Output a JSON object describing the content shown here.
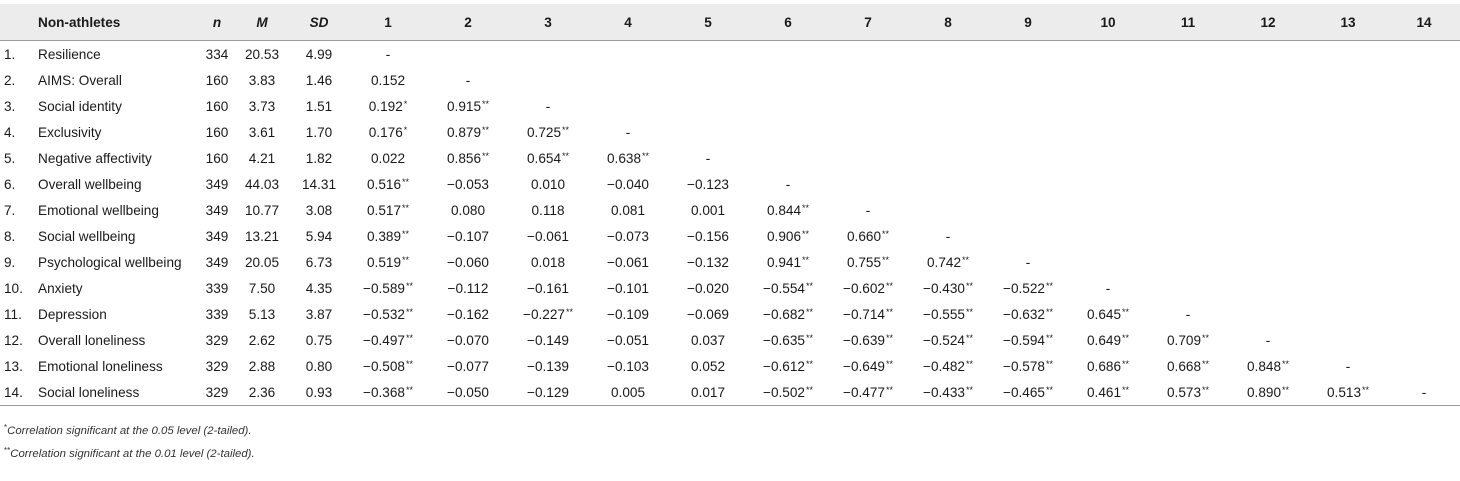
{
  "table": {
    "headers": {
      "index": "",
      "group": "Non-athletes",
      "n": "n",
      "M": "M",
      "SD": "SD",
      "cols": [
        "1",
        "2",
        "3",
        "4",
        "5",
        "6",
        "7",
        "8",
        "9",
        "10",
        "11",
        "12",
        "13",
        "14"
      ]
    },
    "rows": [
      {
        "idx": "1.",
        "var": "Resilience",
        "n": "334",
        "M": "20.53",
        "SD": "4.99",
        "cells": [
          "-",
          "",
          "",
          "",
          "",
          "",
          "",
          "",
          "",
          "",
          "",
          "",
          "",
          ""
        ]
      },
      {
        "idx": "2.",
        "var": "AIMS: Overall",
        "n": "160",
        "M": "3.83",
        "SD": "1.46",
        "cells": [
          "0.152",
          "-",
          "",
          "",
          "",
          "",
          "",
          "",
          "",
          "",
          "",
          "",
          "",
          ""
        ]
      },
      {
        "idx": "3.",
        "var": "Social identity",
        "n": "160",
        "M": "3.73",
        "SD": "1.51",
        "cells": [
          "0.192*",
          "0.915**",
          "-",
          "",
          "",
          "",
          "",
          "",
          "",
          "",
          "",
          "",
          "",
          ""
        ]
      },
      {
        "idx": "4.",
        "var": "Exclusivity",
        "n": "160",
        "M": "3.61",
        "SD": "1.70",
        "cells": [
          "0.176*",
          "0.879**",
          "0.725**",
          "-",
          "",
          "",
          "",
          "",
          "",
          "",
          "",
          "",
          "",
          ""
        ]
      },
      {
        "idx": "5.",
        "var": "Negative affectivity",
        "n": "160",
        "M": "4.21",
        "SD": "1.82",
        "cells": [
          "0.022",
          "0.856**",
          "0.654**",
          "0.638**",
          "-",
          "",
          "",
          "",
          "",
          "",
          "",
          "",
          "",
          ""
        ]
      },
      {
        "idx": "6.",
        "var": "Overall wellbeing",
        "n": "349",
        "M": "44.03",
        "SD": "14.31",
        "cells": [
          "0.516**",
          "−0.053",
          "0.010",
          "−0.040",
          "−0.123",
          "-",
          "",
          "",
          "",
          "",
          "",
          "",
          "",
          ""
        ]
      },
      {
        "idx": "7.",
        "var": "Emotional wellbeing",
        "n": "349",
        "M": "10.77",
        "SD": "3.08",
        "cells": [
          "0.517**",
          "0.080",
          "0.118",
          "0.081",
          "0.001",
          "0.844**",
          "-",
          "",
          "",
          "",
          "",
          "",
          "",
          ""
        ]
      },
      {
        "idx": "8.",
        "var": "Social wellbeing",
        "n": "349",
        "M": "13.21",
        "SD": "5.94",
        "cells": [
          "0.389**",
          "−0.107",
          "−0.061",
          "−0.073",
          "−0.156",
          "0.906**",
          "0.660**",
          "-",
          "",
          "",
          "",
          "",
          "",
          ""
        ]
      },
      {
        "idx": "9.",
        "var": "Psychological wellbeing",
        "n": "349",
        "M": "20.05",
        "SD": "6.73",
        "cells": [
          "0.519**",
          "−0.060",
          "0.018",
          "−0.061",
          "−0.132",
          "0.941**",
          "0.755**",
          "0.742**",
          "-",
          "",
          "",
          "",
          "",
          ""
        ]
      },
      {
        "idx": "10.",
        "var": "Anxiety",
        "n": "339",
        "M": "7.50",
        "SD": "4.35",
        "cells": [
          "−0.589**",
          "−0.112",
          "−0.161",
          "−0.101",
          "−0.020",
          "−0.554**",
          "−0.602**",
          "−0.430**",
          "−0.522**",
          "-",
          "",
          "",
          "",
          ""
        ]
      },
      {
        "idx": "11.",
        "var": "Depression",
        "n": "339",
        "M": "5.13",
        "SD": "3.87",
        "cells": [
          "−0.532**",
          "−0.162",
          "−0.227**",
          "−0.109",
          "−0.069",
          "−0.682**",
          "−0.714**",
          "−0.555**",
          "−0.632**",
          "0.645**",
          "-",
          "",
          "",
          ""
        ]
      },
      {
        "idx": "12.",
        "var": "Overall loneliness",
        "n": "329",
        "M": "2.62",
        "SD": "0.75",
        "cells": [
          "−0.497**",
          "−0.070",
          "−0.149",
          "−0.051",
          "0.037",
          "−0.635**",
          "−0.639**",
          "−0.524**",
          "−0.594**",
          "0.649**",
          "0.709**",
          "-",
          "",
          ""
        ]
      },
      {
        "idx": "13.",
        "var": "Emotional loneliness",
        "n": "329",
        "M": "2.88",
        "SD": "0.80",
        "cells": [
          "−0.508**",
          "−0.077",
          "−0.139",
          "−0.103",
          "0.052",
          "−0.612**",
          "−0.649**",
          "−0.482**",
          "−0.578**",
          "0.686**",
          "0.668**",
          "0.848**",
          "-",
          ""
        ]
      },
      {
        "idx": "14.",
        "var": "Social loneliness",
        "n": "329",
        "M": "2.36",
        "SD": "0.93",
        "cells": [
          "−0.368**",
          "−0.050",
          "−0.129",
          "0.005",
          "0.017",
          "−0.502**",
          "−0.477**",
          "−0.433**",
          "−0.465**",
          "0.461**",
          "0.573**",
          "0.890**",
          "0.513**",
          "-"
        ]
      }
    ]
  },
  "notes": [
    {
      "mark": "*",
      "text": "Correlation significant at the 0.05 level (2-tailed)."
    },
    {
      "mark": "**",
      "text": "Correlation significant at the 0.01 level (2-tailed)."
    }
  ]
}
